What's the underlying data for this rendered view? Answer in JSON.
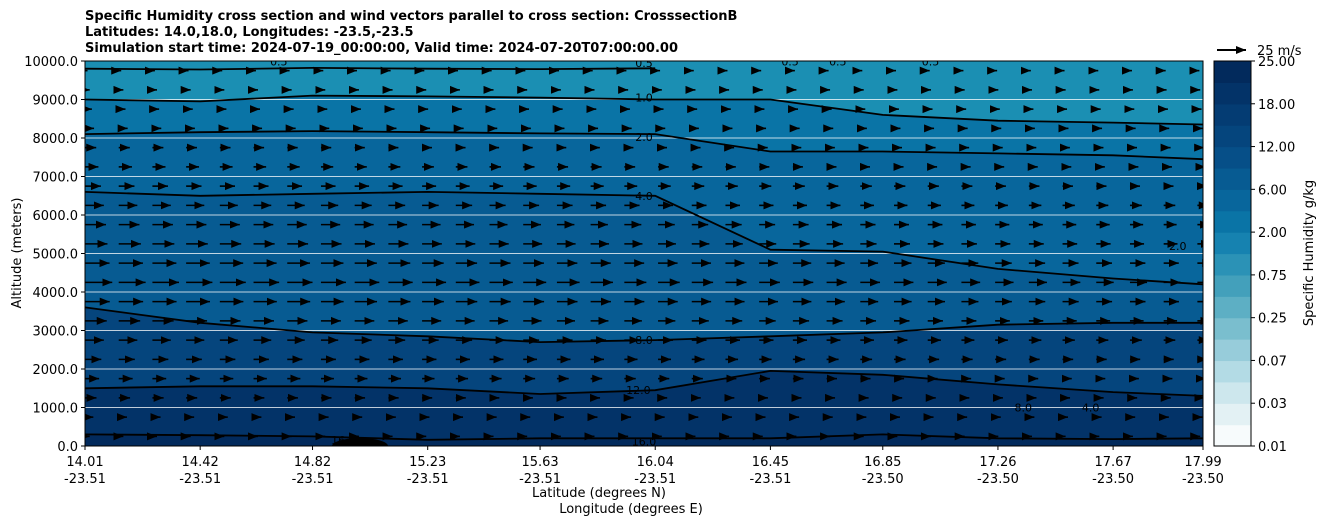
{
  "chart_data": {
    "type": "contour",
    "title": [
      "Specific Humidity cross section and wind vectors parallel to cross section: CrosssectionB",
      "Latitudes: 14.0,18.0, Longitudes: -23.5,-23.5",
      "Simulation start time: 2024-07-19_00:00:00, Valid time: 2024-07-20T07:00:00.00"
    ],
    "xlabel_lat": "Latitude (degrees N)",
    "xlabel_lon": "Longitude (degrees E)",
    "ylabel": "Altitude (meters)",
    "ylim": [
      0,
      10000
    ],
    "xlim": [
      14.01,
      17.99
    ],
    "y_ticks": [
      0,
      1000,
      2000,
      3000,
      4000,
      5000,
      6000,
      7000,
      8000,
      9000,
      10000
    ],
    "y_tick_labels": [
      "0.0",
      "1000.0",
      "2000.0",
      "3000.0",
      "4000.0",
      "5000.0",
      "6000.0",
      "7000.0",
      "8000.0",
      "9000.0",
      "10000.0"
    ],
    "x_ticks": [
      {
        "lat": 14.01,
        "lat_label": "14.01",
        "lon_label": "-23.51"
      },
      {
        "lat": 14.42,
        "lat_label": "14.42",
        "lon_label": "-23.51"
      },
      {
        "lat": 14.82,
        "lat_label": "14.82",
        "lon_label": "-23.51"
      },
      {
        "lat": 15.23,
        "lat_label": "15.23",
        "lon_label": "-23.51"
      },
      {
        "lat": 15.63,
        "lat_label": "15.63",
        "lon_label": "-23.51"
      },
      {
        "lat": 16.04,
        "lat_label": "16.04",
        "lon_label": "-23.51"
      },
      {
        "lat": 16.45,
        "lat_label": "16.45",
        "lon_label": "-23.51"
      },
      {
        "lat": 16.85,
        "lat_label": "16.85",
        "lon_label": "-23.50"
      },
      {
        "lat": 17.26,
        "lat_label": "17.26",
        "lon_label": "-23.50"
      },
      {
        "lat": 17.67,
        "lat_label": "17.67",
        "lon_label": "-23.50"
      },
      {
        "lat": 17.99,
        "lat_label": "17.99",
        "lon_label": "-23.50"
      }
    ],
    "colorbar": {
      "label": "Specific Humidity g/kg",
      "levels": [
        0.01,
        0.02,
        0.03,
        0.05,
        0.07,
        0.1,
        0.25,
        0.5,
        0.75,
        1.0,
        2.0,
        4.0,
        6.0,
        9.0,
        12.0,
        15.0,
        18.0,
        21.0,
        25.0
      ],
      "tick_labels": [
        "0.01",
        "0.03",
        "0.07",
        "0.25",
        "0.75",
        "2.00",
        "6.00",
        "12.00",
        "18.00",
        "25.00"
      ],
      "colors": [
        "#f7fbfc",
        "#e3f1f4",
        "#cde7ed",
        "#b3dbe5",
        "#97ccda",
        "#7abece",
        "#5dafc4",
        "#43a0bb",
        "#2b92b6",
        "#1682b0",
        "#0a74a6",
        "#08669c",
        "#075b92",
        "#064f88",
        "#05457d",
        "#043c73",
        "#033368",
        "#022a5c"
      ]
    },
    "contour_lines": [
      {
        "level": 0.5,
        "label": "0.5",
        "heights": [
          9800,
          9780,
          9820,
          9800,
          9790,
          9810,
          null,
          null,
          null,
          null,
          null
        ]
      },
      {
        "level": 1.0,
        "label": "1.0",
        "heights": [
          9000,
          8950,
          9100,
          9080,
          9050,
          9000,
          9000,
          8600,
          8450,
          8400,
          8350
        ]
      },
      {
        "level": 2.0,
        "label": "2.0",
        "heights": [
          8100,
          8150,
          8180,
          8150,
          8120,
          8100,
          7650,
          7650,
          7600,
          7550,
          7450
        ]
      },
      {
        "level": 4.0,
        "label": "4.0",
        "heights": [
          6600,
          6500,
          6550,
          6600,
          6550,
          6500,
          5100,
          5050,
          4600,
          4350,
          4200
        ]
      },
      {
        "level": 8.0,
        "label": "8.0",
        "heights": [
          3600,
          3200,
          2950,
          2850,
          2700,
          2750,
          2850,
          2950,
          3150,
          3200,
          3200
        ]
      },
      {
        "level": 12.0,
        "label": "12.0",
        "heights": [
          1500,
          1550,
          1550,
          1500,
          1350,
          1450,
          1950,
          1850,
          1600,
          1400,
          1300
        ]
      },
      {
        "level": 16.0,
        "label": "16.0",
        "heights": [
          300,
          280,
          250,
          160,
          200,
          200,
          200,
          300,
          200,
          180,
          200
        ]
      }
    ],
    "contour_labels": [
      {
        "text": "0.5",
        "lat": 16.0,
        "alt": 9950
      },
      {
        "text": "1.0",
        "lat": 16.0,
        "alt": 9050
      },
      {
        "text": "2.0",
        "lat": 16.0,
        "alt": 8020
      },
      {
        "text": "4.0",
        "lat": 16.0,
        "alt": 6500
      },
      {
        "text": "8.0",
        "lat": 16.0,
        "alt": 2750
      },
      {
        "text": "12.0",
        "lat": 15.98,
        "alt": 1450
      },
      {
        "text": "16.0",
        "lat": 14.93,
        "alt": 160
      },
      {
        "text": "16.0",
        "lat": 16.0,
        "alt": 120
      },
      {
        "text": "0.5",
        "lat": 16.52,
        "alt": 9990
      },
      {
        "text": "0.5",
        "lat": 16.69,
        "alt": 9990
      },
      {
        "text": "0.5",
        "lat": 17.02,
        "alt": 9990
      },
      {
        "text": "0.5",
        "lat": 14.7,
        "alt": 9990
      },
      {
        "text": "2.0",
        "lat": 17.9,
        "alt": 5200
      },
      {
        "text": "8.0",
        "lat": 17.35,
        "alt": 1000
      },
      {
        "text": "4.0",
        "lat": 17.59,
        "alt": 1000
      }
    ],
    "wind_reference": {
      "speed": 25,
      "label": "25 m/s"
    }
  }
}
